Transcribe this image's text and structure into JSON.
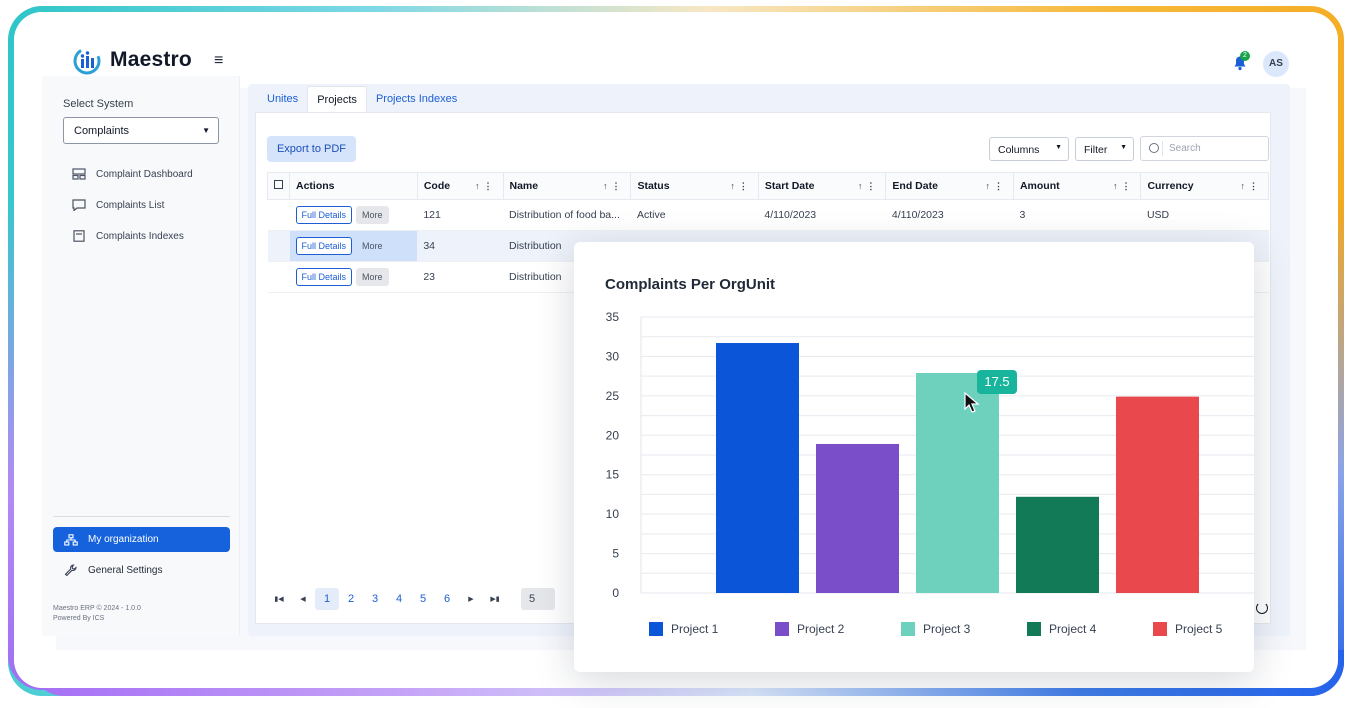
{
  "brand": {
    "name": "Maestro"
  },
  "header": {
    "notification_count": "2",
    "avatar_initials": "AS"
  },
  "sidebar": {
    "select_label": "Select System",
    "selected_system": "Complaints",
    "items": [
      {
        "label": "Complaint Dashboard",
        "icon": "dashboard-icon"
      },
      {
        "label": "Complaints List",
        "icon": "chat-icon"
      },
      {
        "label": "Complaints Indexes",
        "icon": "document-icon"
      }
    ],
    "my_org": "My organization",
    "settings": "General Settings",
    "footer_version": "Maestro ERP © 2024 - 1.0.0",
    "footer_powered": "Powered By ICS"
  },
  "tabs": [
    {
      "label": "Unites"
    },
    {
      "label": "Projects"
    },
    {
      "label": "Projects Indexes"
    }
  ],
  "toolbar": {
    "export": "Export to PDF",
    "columns": "Columns",
    "filter": "Filter",
    "search_placeholder": "Search"
  },
  "table": {
    "headers": [
      "Actions",
      "Code",
      "Name",
      "Status",
      "Start Date",
      "End Date",
      "Amount",
      "Currency"
    ],
    "full_details": "Full Details",
    "more": "More",
    "rows": [
      {
        "code": "121",
        "name": "Distribution of food ba...",
        "status": "Active",
        "start": "4/110/2023",
        "end": "4/110/2023",
        "amount": "3",
        "currency": "USD"
      },
      {
        "code": "34",
        "name": "Distribution"
      },
      {
        "code": "23",
        "name": "Distribution"
      }
    ]
  },
  "pager": {
    "pages": [
      "1",
      "2",
      "3",
      "4",
      "5",
      "6"
    ],
    "current": "1",
    "page_size": "5"
  },
  "chart_data": {
    "type": "bar",
    "title": "Complaints Per OrgUnit",
    "categories": [
      "Project 1",
      "Project 2",
      "Project 3",
      "Project 4",
      "Project 5"
    ],
    "values": [
      31.7,
      18.9,
      27.9,
      12.2,
      24.9
    ],
    "colors": [
      "#0a55d8",
      "#7a4ec9",
      "#6dd1bd",
      "#137a57",
      "#e9484d"
    ],
    "ylim": [
      0,
      35
    ],
    "yticks": [
      0,
      5,
      10,
      15,
      20,
      25,
      30,
      35
    ],
    "grid": true,
    "legend": "bottom",
    "tooltip": "17.5"
  }
}
